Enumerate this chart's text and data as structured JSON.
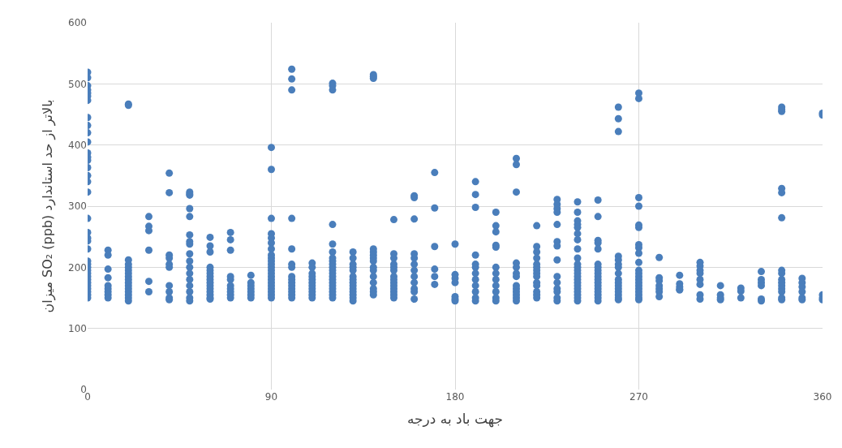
{
  "chart_data": {
    "type": "scatter",
    "xlabel": "جهت باد به درجه",
    "ylabel": "میزان SO₂ (ppb) بالاتر از حد استاندارد",
    "xlim": [
      0,
      360
    ],
    "xticks": [
      0,
      90,
      180,
      270,
      360
    ],
    "ylim": [
      0,
      600
    ],
    "yticks": [
      0,
      100,
      200,
      300,
      400,
      500,
      600
    ],
    "grid": true,
    "marker": "circle",
    "series": [
      {
        "color": "#4a7ebb",
        "x": [
          0,
          0,
          0,
          0,
          0,
          0,
          0,
          0,
          0,
          0,
          0,
          0,
          0,
          0,
          0,
          0,
          0,
          0,
          0,
          0,
          0,
          0,
          0,
          0,
          0,
          0,
          0,
          0,
          0,
          0,
          0,
          0,
          0,
          0,
          0,
          0,
          10,
          10,
          10,
          10,
          10,
          10,
          10,
          10,
          10,
          20,
          20,
          20,
          20,
          20,
          20,
          20,
          20,
          20,
          20,
          20,
          20,
          20,
          20,
          20,
          20,
          30,
          30,
          30,
          30,
          30,
          30,
          40,
          40,
          40,
          40,
          40,
          40,
          40,
          40,
          40,
          40,
          50,
          50,
          50,
          50,
          50,
          50,
          50,
          50,
          50,
          50,
          50,
          50,
          50,
          50,
          50,
          50,
          50,
          60,
          60,
          60,
          60,
          60,
          60,
          60,
          60,
          60,
          60,
          60,
          60,
          60,
          60,
          60,
          70,
          70,
          70,
          70,
          70,
          70,
          70,
          70,
          70,
          70,
          80,
          80,
          80,
          80,
          80,
          80,
          80,
          90,
          90,
          90,
          90,
          90,
          90,
          90,
          90,
          90,
          90,
          90,
          90,
          90,
          90,
          90,
          90,
          90,
          90,
          90,
          90,
          90,
          90,
          100,
          100,
          100,
          100,
          100,
          100,
          100,
          100,
          100,
          100,
          100,
          100,
          100,
          100,
          100,
          110,
          110,
          110,
          110,
          110,
          110,
          110,
          110,
          110,
          110,
          110,
          120,
          120,
          120,
          120,
          120,
          120,
          120,
          120,
          120,
          120,
          120,
          120,
          120,
          120,
          120,
          120,
          120,
          120,
          120,
          120,
          130,
          130,
          130,
          130,
          130,
          130,
          130,
          130,
          130,
          130,
          130,
          130,
          130,
          130,
          140,
          140,
          140,
          140,
          140,
          140,
          140,
          140,
          140,
          140,
          140,
          140,
          140,
          140,
          140,
          150,
          150,
          150,
          150,
          150,
          150,
          150,
          150,
          150,
          150,
          150,
          150,
          150,
          150,
          160,
          160,
          160,
          160,
          160,
          160,
          160,
          160,
          160,
          160,
          160,
          160,
          170,
          170,
          170,
          170,
          170,
          170,
          180,
          180,
          180,
          180,
          180,
          180,
          180,
          190,
          190,
          190,
          190,
          190,
          190,
          190,
          190,
          190,
          190,
          190,
          190,
          200,
          200,
          200,
          200,
          200,
          200,
          200,
          200,
          200,
          200,
          200,
          200,
          210,
          210,
          210,
          210,
          210,
          210,
          210,
          210,
          210,
          210,
          210,
          210,
          210,
          220,
          220,
          220,
          220,
          220,
          220,
          220,
          220,
          220,
          220,
          220,
          220,
          220,
          220,
          230,
          230,
          230,
          230,
          230,
          230,
          230,
          230,
          230,
          230,
          230,
          230,
          230,
          230,
          240,
          240,
          240,
          240,
          240,
          240,
          240,
          240,
          240,
          240,
          240,
          240,
          240,
          240,
          240,
          240,
          240,
          240,
          240,
          240,
          240,
          240,
          250,
          250,
          250,
          250,
          250,
          250,
          250,
          250,
          250,
          250,
          250,
          250,
          250,
          250,
          250,
          250,
          250,
          250,
          260,
          260,
          260,
          260,
          260,
          260,
          260,
          260,
          260,
          260,
          260,
          260,
          260,
          260,
          260,
          260,
          270,
          270,
          270,
          270,
          270,
          270,
          270,
          270,
          270,
          270,
          270,
          270,
          270,
          270,
          270,
          270,
          270,
          270,
          270,
          270,
          270,
          280,
          280,
          280,
          280,
          280,
          280,
          280,
          290,
          290,
          290,
          290,
          290,
          300,
          300,
          300,
          300,
          300,
          300,
          300,
          300,
          310,
          310,
          310,
          310,
          320,
          320,
          320,
          330,
          330,
          330,
          330,
          330,
          330,
          340,
          340,
          340,
          340,
          340,
          340,
          340,
          340,
          340,
          340,
          340,
          340,
          340,
          340,
          340,
          350,
          350,
          350,
          350,
          350,
          350,
          360,
          360,
          360,
          360,
          360
        ],
        "values": [
          519,
          510,
          497,
          490,
          485,
          480,
          473,
          445,
          432,
          420,
          405,
          387,
          380,
          375,
          363,
          350,
          340,
          323,
          280,
          257,
          248,
          243,
          230,
          210,
          205,
          200,
          195,
          190,
          185,
          180,
          175,
          170,
          165,
          160,
          155,
          150,
          228,
          220,
          197,
          183,
          170,
          165,
          160,
          155,
          150,
          467,
          465,
          212,
          205,
          200,
          195,
          190,
          185,
          180,
          175,
          170,
          165,
          160,
          155,
          150,
          145,
          283,
          267,
          260,
          228,
          177,
          160,
          354,
          322,
          220,
          215,
          205,
          200,
          170,
          160,
          150,
          147,
          323,
          320,
          318,
          296,
          283,
          253,
          242,
          238,
          222,
          210,
          200,
          190,
          180,
          170,
          160,
          150,
          145,
          249,
          235,
          225,
          200,
          195,
          190,
          185,
          180,
          175,
          170,
          165,
          160,
          155,
          150,
          148,
          257,
          245,
          228,
          185,
          180,
          170,
          165,
          160,
          155,
          150,
          187,
          175,
          170,
          165,
          160,
          155,
          150,
          396,
          360,
          280,
          255,
          248,
          240,
          230,
          220,
          215,
          210,
          205,
          200,
          195,
          190,
          185,
          180,
          175,
          170,
          165,
          160,
          155,
          150,
          524,
          508,
          490,
          280,
          230,
          205,
          200,
          185,
          180,
          175,
          170,
          165,
          160,
          155,
          150,
          207,
          200,
          190,
          185,
          180,
          175,
          170,
          165,
          160,
          155,
          150,
          501,
          497,
          490,
          270,
          238,
          225,
          215,
          210,
          205,
          200,
          195,
          190,
          185,
          180,
          175,
          170,
          165,
          160,
          155,
          150,
          225,
          215,
          205,
          200,
          195,
          185,
          180,
          175,
          170,
          165,
          160,
          155,
          150,
          145,
          515,
          512,
          509,
          230,
          225,
          220,
          215,
          210,
          200,
          195,
          185,
          175,
          165,
          160,
          155,
          278,
          222,
          215,
          205,
          200,
          195,
          185,
          180,
          175,
          170,
          165,
          160,
          155,
          150,
          317,
          314,
          279,
          222,
          215,
          205,
          195,
          185,
          175,
          165,
          160,
          148,
          355,
          297,
          234,
          197,
          185,
          172,
          238,
          188,
          182,
          175,
          152,
          148,
          145,
          340,
          319,
          298,
          220,
          205,
          200,
          190,
          180,
          170,
          160,
          150,
          145,
          290,
          268,
          258,
          236,
          233,
          200,
          190,
          180,
          170,
          160,
          150,
          145,
          378,
          368,
          323,
          207,
          200,
          190,
          185,
          170,
          165,
          160,
          155,
          150,
          145,
          268,
          234,
          225,
          215,
          205,
          200,
          195,
          190,
          185,
          175,
          170,
          160,
          155,
          150,
          311,
          303,
          296,
          290,
          270,
          242,
          235,
          212,
          185,
          175,
          165,
          160,
          150,
          145,
          307,
          290,
          276,
          270,
          265,
          255,
          245,
          230,
          215,
          205,
          200,
          195,
          190,
          185,
          180,
          175,
          170,
          165,
          160,
          155,
          150,
          145,
          310,
          283,
          244,
          240,
          230,
          205,
          200,
          195,
          190,
          185,
          180,
          175,
          170,
          165,
          160,
          155,
          150,
          145,
          462,
          443,
          422,
          218,
          212,
          205,
          200,
          190,
          180,
          175,
          170,
          165,
          160,
          155,
          150,
          147,
          485,
          476,
          314,
          300,
          269,
          265,
          237,
          232,
          223,
          208,
          195,
          190,
          185,
          180,
          175,
          170,
          165,
          160,
          155,
          150,
          147,
          216,
          183,
          178,
          170,
          165,
          160,
          152,
          187,
          173,
          168,
          164,
          163,
          208,
          202,
          195,
          190,
          180,
          172,
          155,
          148,
          170,
          155,
          150,
          147,
          166,
          161,
          150,
          193,
          180,
          175,
          170,
          148,
          145,
          462,
          458,
          455,
          329,
          322,
          281,
          195,
          190,
          180,
          175,
          170,
          165,
          160,
          150,
          147,
          182,
          175,
          168,
          160,
          150,
          147,
          452,
          449,
          155,
          150,
          147
        ]
      }
    ]
  }
}
